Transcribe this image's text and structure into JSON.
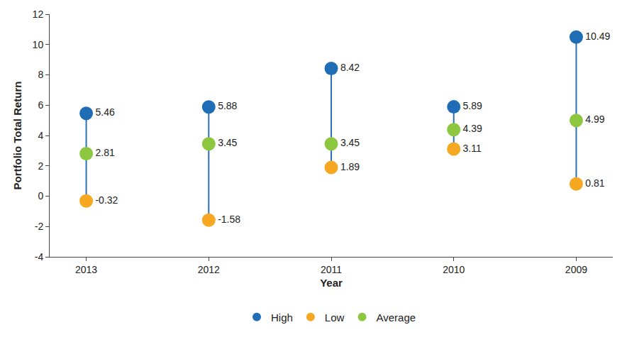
{
  "chart_data": {
    "type": "dumbbell",
    "xlabel": "Year",
    "ylabel": "Portfolio Total Return",
    "categories": [
      "2013",
      "2012",
      "2011",
      "2010",
      "2009"
    ],
    "series": [
      {
        "name": "High",
        "color": "#1f6db5",
        "values": [
          5.46,
          5.88,
          8.42,
          5.89,
          10.49
        ]
      },
      {
        "name": "Low",
        "color": "#f7a823",
        "values": [
          -0.32,
          -1.58,
          1.89,
          3.11,
          0.81
        ]
      },
      {
        "name": "Average",
        "color": "#8dc63f",
        "values": [
          2.81,
          3.45,
          3.45,
          4.39,
          4.99
        ]
      }
    ],
    "ylim": [
      -4,
      12
    ],
    "yticks": [
      -4,
      -2,
      0,
      2,
      4,
      6,
      8,
      10,
      12
    ],
    "grid": false,
    "legend": "bottom",
    "data_labels": true,
    "marker": "circle"
  }
}
